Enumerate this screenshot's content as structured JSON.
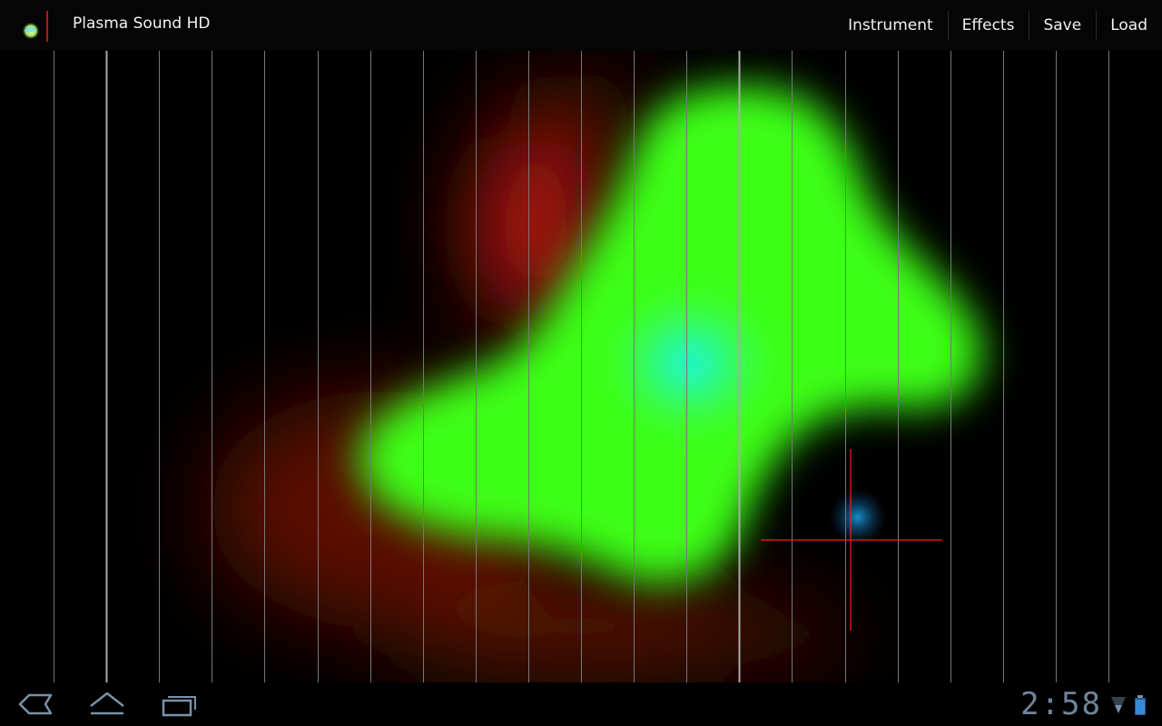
{
  "app": {
    "title": "Plasma Sound HD",
    "icon": "plasma-sound-app-icon"
  },
  "menu": {
    "items": [
      "Instrument",
      "Effects",
      "Save",
      "Load"
    ]
  },
  "system_bar": {
    "clock": "2:58",
    "icons": [
      "back-icon",
      "home-icon",
      "recent-apps-icon",
      "wifi-signal-icon",
      "battery-icon"
    ]
  },
  "colors": {
    "background": "#000000",
    "blob_green": "#3cff14",
    "blob_red": "#b41808",
    "blob_cyan": "#10f4ff",
    "crosshair": "#ff1a1a",
    "string_lines": "#777777",
    "clock": "#6f8499"
  }
}
